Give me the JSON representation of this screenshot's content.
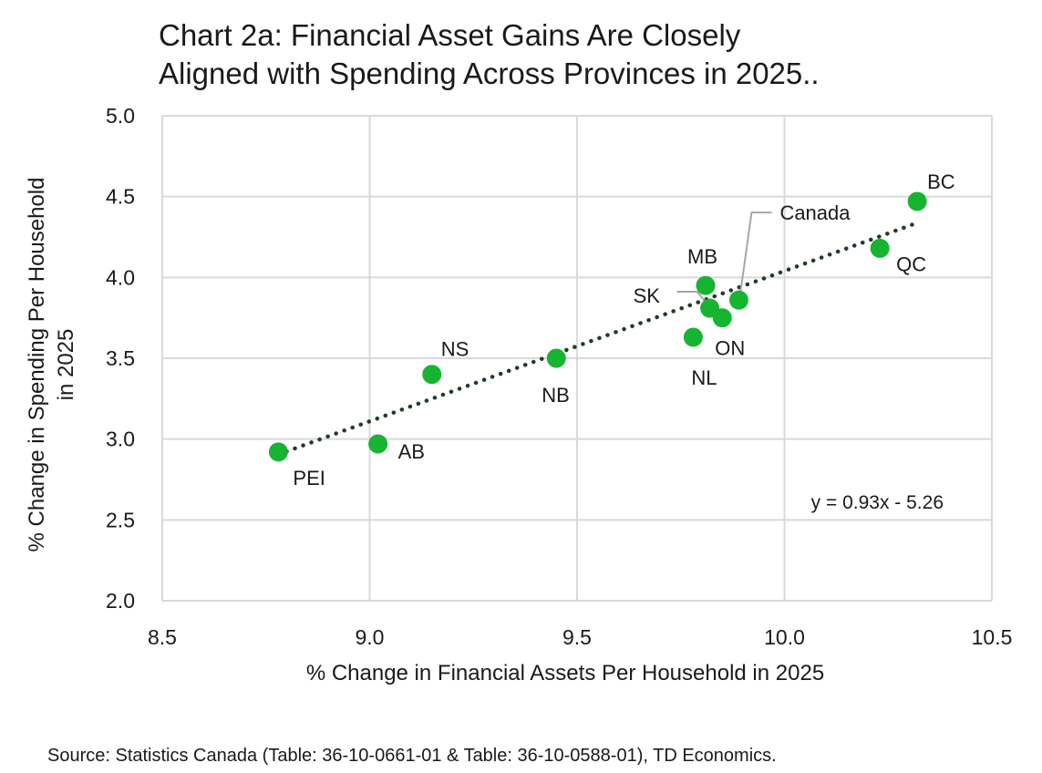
{
  "title_line1": "Chart 2a: Financial Asset Gains Are Closely",
  "title_line2": "Aligned with Spending Across Provinces in 2025..",
  "source": "Source: Statistics Canada (Table: 36-10-0661-01 & Table: 36-10-0588-01), TD Economics.",
  "colors": {
    "point": "#17b432",
    "trendline": "#1f3d23",
    "grid": "#d9d9d9",
    "leader": "#a6a6a6",
    "text": "#1a1a1a"
  },
  "chart_data": {
    "type": "scatter",
    "xlabel": "% Change in Financial Assets Per Household in 2025",
    "ylabel_line1": "% Change in Spending Per Household",
    "ylabel_line2": "in 2025",
    "xlim": [
      8.5,
      10.5
    ],
    "ylim": [
      2.0,
      5.0
    ],
    "xticks": [
      8.5,
      9.0,
      9.5,
      10.0,
      10.5
    ],
    "yticks": [
      2.0,
      2.5,
      3.0,
      3.5,
      4.0,
      4.5,
      5.0
    ],
    "xtick_labels": [
      "8.5",
      "9.0",
      "9.5",
      "10.0",
      "10.5"
    ],
    "ytick_labels": [
      "2.0",
      "2.5",
      "3.0",
      "3.5",
      "4.0",
      "4.5",
      "5.0"
    ],
    "grid": true,
    "points": [
      {
        "label": "PEI",
        "x": 8.78,
        "y": 2.92
      },
      {
        "label": "AB",
        "x": 9.02,
        "y": 2.97
      },
      {
        "label": "NS",
        "x": 9.15,
        "y": 3.4
      },
      {
        "label": "NB",
        "x": 9.45,
        "y": 3.5
      },
      {
        "label": "NL",
        "x": 9.78,
        "y": 3.63
      },
      {
        "label": "MB",
        "x": 9.81,
        "y": 3.95
      },
      {
        "label": "SK",
        "x": 9.82,
        "y": 3.81
      },
      {
        "label": "ON",
        "x": 9.85,
        "y": 3.75
      },
      {
        "label": "Canada",
        "x": 9.89,
        "y": 3.86
      },
      {
        "label": "QC",
        "x": 10.23,
        "y": 4.18
      },
      {
        "label": "BC",
        "x": 10.32,
        "y": 4.47
      }
    ],
    "trendline": {
      "slope": 0.93,
      "intercept": -5.26,
      "x_range": [
        8.78,
        10.32
      ],
      "style": "dotted"
    },
    "equation": "y = 0.93x - 5.26"
  }
}
